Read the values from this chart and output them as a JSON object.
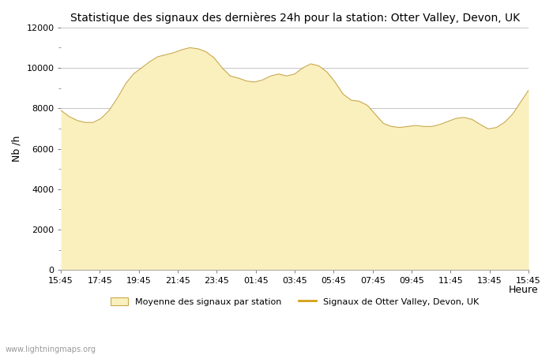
{
  "title": "Statistique des signaux des dernières 24h pour la station: Otter Valley, Devon, UK",
  "xlabel": "Heure",
  "ylabel": "Nb /h",
  "ylim": [
    0,
    12000
  ],
  "yticks_major": [
    0,
    2000,
    4000,
    6000,
    8000,
    10000,
    12000
  ],
  "yticks_minor": [
    1000,
    3000,
    5000,
    7000,
    9000,
    11000
  ],
  "xtick_labels": [
    "15:45",
    "17:45",
    "19:45",
    "21:45",
    "23:45",
    "01:45",
    "03:45",
    "05:45",
    "07:45",
    "09:45",
    "11:45",
    "13:45",
    "15:45"
  ],
  "fill_color": "#FAF0BE",
  "fill_edge_color": "#C8A84A",
  "line_color": "#D4A017",
  "grid_color": "#bbbbbb",
  "background_color": "#ffffff",
  "watermark": "www.lightningmaps.org",
  "legend_fill_label": "Moyenne des signaux par station",
  "legend_line_label": "Signaux de Otter Valley, Devon, UK",
  "title_fontsize": 10,
  "axis_fontsize": 8,
  "y_values": [
    7900,
    7600,
    7400,
    7300,
    7300,
    7500,
    7900,
    8500,
    9200,
    9700,
    10000,
    10300,
    10550,
    10650,
    10750,
    10900,
    11000,
    10950,
    10800,
    10500,
    10000,
    9600,
    9500,
    9350,
    9300,
    9400,
    9600,
    9700,
    9600,
    9700,
    10000,
    10200,
    10100,
    9800,
    9300,
    8700,
    8400,
    8350,
    8150,
    7700,
    7250,
    7100,
    7050,
    7100,
    7150,
    7100,
    7100,
    7200,
    7350,
    7500,
    7550,
    7450,
    7200,
    6980,
    7050,
    7300,
    7700,
    8300,
    8900
  ]
}
